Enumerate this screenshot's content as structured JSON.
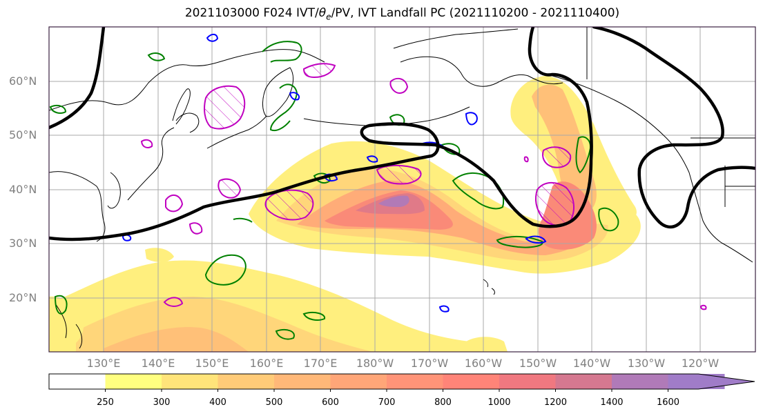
{
  "title": {
    "main": "2021103000 F024 IVT/",
    "theta": "θ",
    "sub": "e",
    "rest": "/PV, IVT Landfall PC (2021110200 - 2021110400)"
  },
  "lat_labels": [
    "60°N",
    "50°N",
    "40°N",
    "30°N",
    "20°N"
  ],
  "lon_labels": [
    "130°E",
    "140°E",
    "150°E",
    "160°E",
    "170°E",
    "180°W",
    "170°W",
    "160°W",
    "150°W",
    "140°W",
    "130°W",
    "120°W"
  ],
  "colorbar": {
    "levels": [
      250,
      300,
      400,
      500,
      600,
      700,
      800,
      1000,
      1200,
      1400,
      1600
    ],
    "labels": [
      "250",
      "300",
      "400",
      "500",
      "600",
      "700",
      "800",
      "1000",
      "1200",
      "1400",
      "1600"
    ],
    "colors": [
      "#ffffff",
      "#ffff80",
      "#ffe47a",
      "#ffcb78",
      "#ffb878",
      "#ffa678",
      "#ff9478",
      "#ff8478",
      "#f07880",
      "#d57890",
      "#b07ab8",
      "#a07cc8"
    ]
  },
  "map_colors": {
    "ivt_contour": "#000000",
    "pv_green": "#008000",
    "pv_blue": "#0000ff",
    "theta_magenta": "#c000c0",
    "grid": "#a8a8a8",
    "coast": "#000000"
  }
}
